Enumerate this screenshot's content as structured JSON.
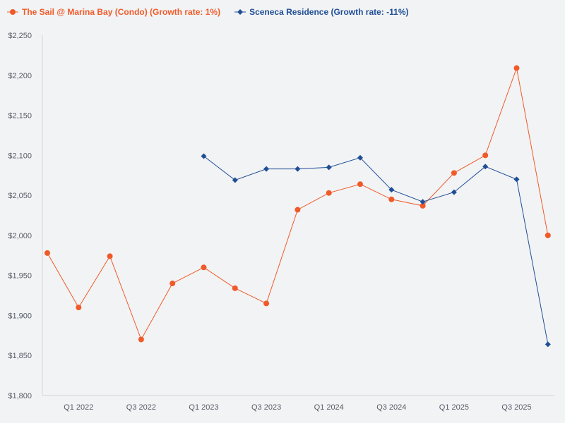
{
  "chart_data": {
    "type": "line",
    "title": "",
    "xlabel": "",
    "ylabel": "",
    "ylim": [
      1800,
      2250
    ],
    "yticks": [
      1800,
      1850,
      1900,
      1950,
      2000,
      2050,
      2100,
      2150,
      2200,
      2250
    ],
    "ytick_labels": [
      "$1,800",
      "$1,850",
      "$1,900",
      "$1,950",
      "$2,000",
      "$2,050",
      "$2,100",
      "$2,150",
      "$2,200",
      "$2,250"
    ],
    "categories": [
      "Q4 2021",
      "Q1 2022",
      "Q2 2022",
      "Q3 2022",
      "Q4 2022",
      "Q1 2023",
      "Q2 2023",
      "Q3 2023",
      "Q4 2023",
      "Q1 2024",
      "Q2 2024",
      "Q3 2024",
      "Q4 2024",
      "Q1 2025",
      "Q2 2025",
      "Q3 2025",
      "Q4 2025"
    ],
    "xtick_labels": [
      {
        "index": 1,
        "label": "Q1 2022"
      },
      {
        "index": 3,
        "label": "Q3 2022"
      },
      {
        "index": 5,
        "label": "Q1 2023"
      },
      {
        "index": 7,
        "label": "Q3 2023"
      },
      {
        "index": 9,
        "label": "Q1 2024"
      },
      {
        "index": 11,
        "label": "Q3 2024"
      },
      {
        "index": 13,
        "label": "Q1 2025"
      },
      {
        "index": 15,
        "label": "Q3 2025"
      }
    ],
    "series": [
      {
        "name": "The Sail @ Marina Bay (Condo) (Growth rate: 1%)",
        "color": "#f05a28",
        "marker": "circle",
        "values": [
          1978,
          1910,
          1974,
          1870,
          1940,
          1960,
          1934,
          1915,
          2032,
          2053,
          2064,
          2045,
          2037,
          2078,
          2100,
          2209,
          2000
        ]
      },
      {
        "name": "Sceneca Residence (Growth rate: -11%)",
        "color": "#1f4e96",
        "marker": "diamond",
        "values": [
          null,
          null,
          null,
          null,
          null,
          2099,
          2069,
          2083,
          2083,
          2085,
          2097,
          2057,
          2042,
          2054,
          2086,
          2070,
          1864
        ]
      }
    ],
    "legend_position": "top-left",
    "grid": false
  }
}
